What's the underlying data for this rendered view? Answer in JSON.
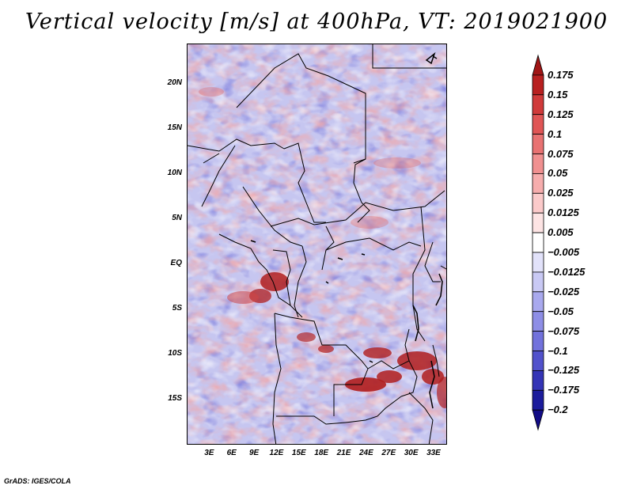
{
  "title": "Vertical velocity [m/s] at 400hPa, VT: 2019021900",
  "footer": "GrADS: IGES/COLA",
  "map": {
    "variable": "Vertical velocity",
    "units": "m/s",
    "level": "400hPa",
    "valid_time": "2019021900",
    "lat_labels": [
      "20N",
      "15N",
      "10N",
      "5N",
      "EQ",
      "5S",
      "10S",
      "15S"
    ],
    "lat_values": [
      20,
      15,
      10,
      5,
      0,
      -5,
      -10,
      -15
    ],
    "lon_labels": [
      "3E",
      "6E",
      "9E",
      "12E",
      "15E",
      "18E",
      "21E",
      "24E",
      "27E",
      "30E",
      "33E"
    ],
    "lon_values": [
      3,
      6,
      9,
      12,
      15,
      18,
      21,
      24,
      27,
      30,
      33
    ],
    "lat_range": [
      -20,
      24.5
    ],
    "lon_range": [
      0,
      34.8
    ]
  },
  "colorbar": {
    "levels": [
      "0.175",
      "0.15",
      "0.125",
      "0.1",
      "0.075",
      "0.05",
      "0.025",
      "0.0125",
      "0.005",
      "−0.005",
      "−0.0125",
      "−0.025",
      "−0.05",
      "−0.075",
      "−0.1",
      "−0.125",
      "−0.175",
      "−0.2"
    ],
    "colors": [
      "#a01515",
      "#b82020",
      "#d03a3a",
      "#e05555",
      "#e87272",
      "#f09090",
      "#f6adad",
      "#fbcaca",
      "#fde4e4",
      "#ffffff",
      "#e2e2fa",
      "#c9c9f4",
      "#a9a9ee",
      "#8e8ee6",
      "#7272dc",
      "#5252cc",
      "#3434b6",
      "#1c1c9c",
      "#120c86"
    ]
  }
}
